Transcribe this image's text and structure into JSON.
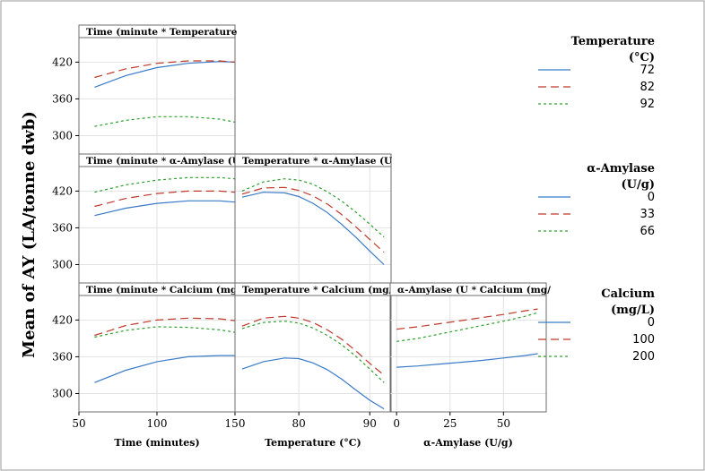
{
  "figure": {
    "ylabel": "Mean of AY (LA/tonne dwb)",
    "colors": {
      "border": "#6e6e6e",
      "grid": "#e2e2e2",
      "strip": "#ffffff",
      "series": [
        "#3a7bc8",
        "#c0392b",
        "#2ca02c"
      ]
    }
  },
  "legends": [
    {
      "title": [
        "Temperature",
        "(°C)"
      ],
      "items": [
        "72",
        "82",
        "92"
      ]
    },
    {
      "title": [
        "α-Amylase",
        "(U/g)"
      ],
      "items": [
        "0",
        "33",
        "66"
      ]
    },
    {
      "title": [
        "Calcium",
        "(mg/L)"
      ],
      "items": [
        "0",
        "100",
        "200"
      ]
    }
  ],
  "chart_data": [
    {
      "type": "line",
      "row": 0,
      "col": 0,
      "title": "Time (minute * Temperature",
      "xlim": [
        50,
        150
      ],
      "ylim": [
        270,
        460
      ],
      "xticks": [
        50,
        100,
        150
      ],
      "xtick_labels": [
        "50",
        "100",
        "150"
      ],
      "yticks": [
        300,
        360,
        420
      ],
      "x": [
        60,
        80,
        100,
        120,
        140,
        150
      ],
      "series": [
        {
          "name": "72",
          "values": [
            379,
            398,
            411,
            418,
            421,
            420
          ]
        },
        {
          "name": "82",
          "values": [
            395,
            409,
            418,
            422,
            422,
            420
          ]
        },
        {
          "name": "92",
          "values": [
            315,
            325,
            331,
            331,
            327,
            322
          ]
        }
      ]
    },
    {
      "type": "line",
      "row": 1,
      "col": 0,
      "title": "Time (minute * α-Amylase (U",
      "xlim": [
        50,
        150
      ],
      "ylim": [
        270,
        460
      ],
      "xticks": [
        50,
        100,
        150
      ],
      "xtick_labels": [
        "50",
        "100",
        "150"
      ],
      "yticks": [
        300,
        360,
        420
      ],
      "x": [
        60,
        80,
        100,
        120,
        140,
        150
      ],
      "series": [
        {
          "name": "0",
          "values": [
            380,
            392,
            400,
            404,
            404,
            402
          ]
        },
        {
          "name": "33",
          "values": [
            395,
            408,
            416,
            420,
            420,
            418
          ]
        },
        {
          "name": "66",
          "values": [
            418,
            430,
            438,
            442,
            442,
            440
          ]
        }
      ]
    },
    {
      "type": "line",
      "row": 1,
      "col": 1,
      "title": "Temperature * α-Amylase (U",
      "xlim": [
        71,
        93
      ],
      "ylim": [
        270,
        460
      ],
      "xticks": [
        80,
        90
      ],
      "xtick_labels": [
        "80",
        "90"
      ],
      "yticks": [
        300,
        360,
        420
      ],
      "x": [
        72,
        75,
        78,
        80,
        82,
        84,
        86,
        88,
        90,
        92
      ],
      "series": [
        {
          "name": "0",
          "values": [
            410,
            418,
            417,
            411,
            400,
            385,
            366,
            345,
            322,
            300
          ]
        },
        {
          "name": "33",
          "values": [
            415,
            425,
            426,
            421,
            412,
            399,
            382,
            362,
            341,
            320
          ]
        },
        {
          "name": "66",
          "values": [
            420,
            435,
            440,
            438,
            431,
            419,
            404,
            386,
            366,
            345
          ]
        }
      ]
    },
    {
      "type": "line",
      "row": 2,
      "col": 0,
      "title": "Time (minute * Calcium (mg/",
      "xlim": [
        50,
        150
      ],
      "ylim": [
        270,
        460
      ],
      "xticks": [
        50,
        100,
        150
      ],
      "xtick_labels": [
        "50",
        "100",
        "150"
      ],
      "yticks": [
        300,
        360,
        420
      ],
      "x": [
        60,
        80,
        100,
        120,
        140,
        150
      ],
      "series": [
        {
          "name": "0",
          "values": [
            318,
            338,
            352,
            360,
            362,
            362
          ]
        },
        {
          "name": "100",
          "values": [
            395,
            411,
            420,
            423,
            422,
            419
          ]
        },
        {
          "name": "200",
          "values": [
            392,
            403,
            409,
            408,
            404,
            400
          ]
        }
      ]
    },
    {
      "type": "line",
      "row": 2,
      "col": 1,
      "title": "Temperature * Calcium (mg/",
      "xlim": [
        71,
        93
      ],
      "ylim": [
        270,
        460
      ],
      "xticks": [
        80,
        90
      ],
      "xtick_labels": [
        "80",
        "90"
      ],
      "yticks": [
        300,
        360,
        420
      ],
      "x": [
        72,
        75,
        78,
        80,
        82,
        84,
        86,
        88,
        90,
        92
      ],
      "series": [
        {
          "name": "0",
          "values": [
            340,
            352,
            358,
            357,
            350,
            339,
            324,
            306,
            289,
            275
          ]
        },
        {
          "name": "100",
          "values": [
            410,
            423,
            426,
            423,
            416,
            404,
            389,
            370,
            349,
            330
          ]
        },
        {
          "name": "200",
          "values": [
            406,
            416,
            418,
            415,
            407,
            395,
            380,
            361,
            340,
            318
          ]
        }
      ]
    },
    {
      "type": "line",
      "row": 2,
      "col": 2,
      "title": "α-Amylase (U * Calcium (mg/",
      "xlim": [
        -3,
        70
      ],
      "ylim": [
        270,
        460
      ],
      "xticks": [
        0,
        25,
        50
      ],
      "xtick_labels": [
        "0",
        "25",
        "50"
      ],
      "yticks": [
        300,
        360,
        420
      ],
      "x": [
        0,
        10,
        20,
        30,
        40,
        50,
        60,
        66
      ],
      "series": [
        {
          "name": "0",
          "values": [
            343,
            345,
            348,
            351,
            354,
            358,
            362,
            365
          ]
        },
        {
          "name": "100",
          "values": [
            405,
            409,
            414,
            419,
            424,
            429,
            435,
            438
          ]
        },
        {
          "name": "200",
          "values": [
            385,
            390,
            397,
            404,
            411,
            418,
            426,
            432
          ]
        }
      ]
    }
  ],
  "xaxes": [
    {
      "col": 0,
      "title": "Time (minutes)"
    },
    {
      "col": 1,
      "title": "Temperature (°C)"
    },
    {
      "col": 2,
      "title": "α-Amylase (U/g)"
    }
  ]
}
